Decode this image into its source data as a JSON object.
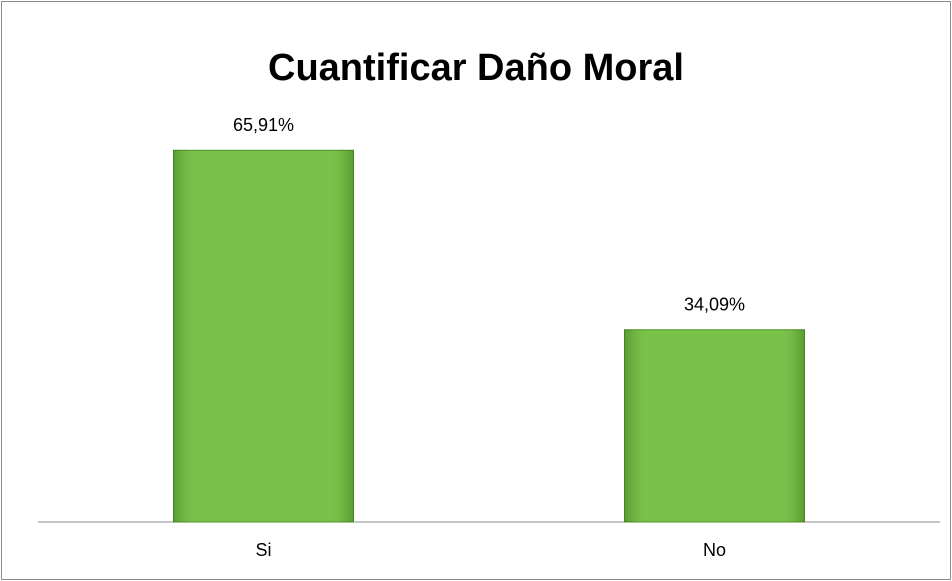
{
  "chart_data": {
    "type": "bar",
    "title": "Cuantificar Daño Moral",
    "categories": [
      "Si",
      "No"
    ],
    "values": [
      65.91,
      34.09
    ],
    "value_labels": [
      "65,91%",
      "34,09%"
    ],
    "color": "#6cbd3a"
  }
}
